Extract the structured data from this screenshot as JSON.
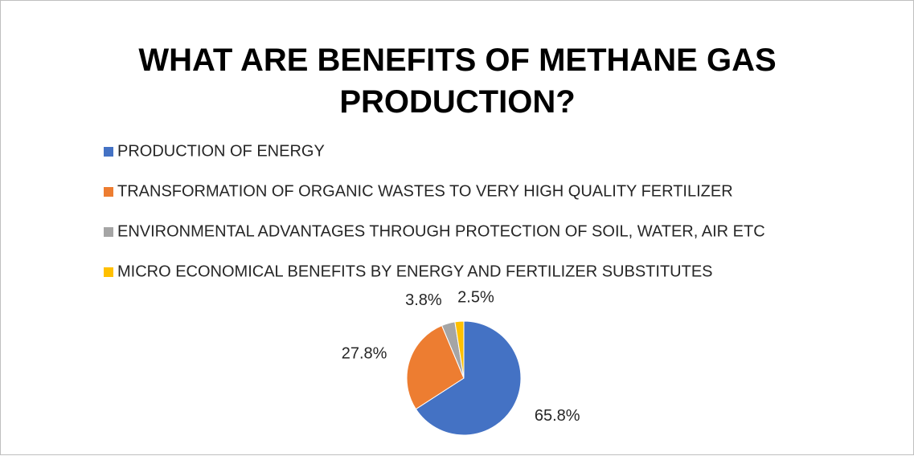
{
  "chart_data": {
    "type": "pie",
    "title": "WHAT ARE BENEFITS OF METHANE GAS PRODUCTION?",
    "categories": [
      "PRODUCTION OF ENERGY",
      "TRANSFORMATION OF ORGANIC WASTES TO VERY HIGH QUALITY FERTILIZER",
      "ENVIRONMENTAL ADVANTAGES THROUGH PROTECTION OF SOIL, WATER, AIR ETC",
      "MICRO ECONOMICAL BENEFITS BY ENERGY AND FERTILIZER SUBSTITUTES"
    ],
    "values": [
      65.8,
      27.8,
      3.8,
      2.5
    ],
    "value_labels": [
      "65.8%",
      "27.8%",
      "3.8%",
      "2.5%"
    ],
    "colors": [
      "#4472c4",
      "#ed7d31",
      "#a5a5a5",
      "#ffc000"
    ],
    "legend": "top"
  }
}
